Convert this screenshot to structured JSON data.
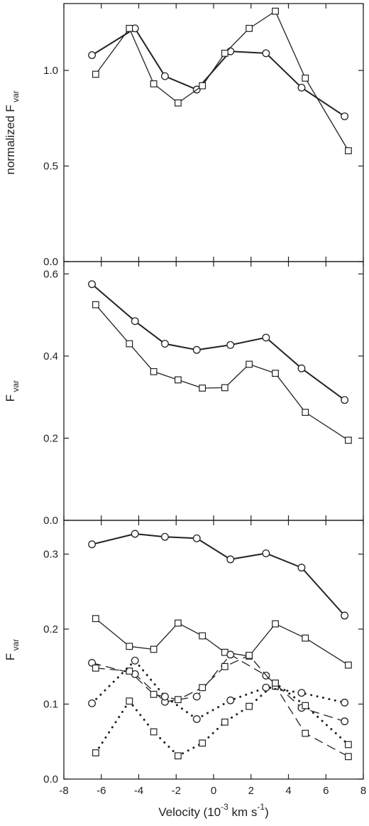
{
  "chart_data": {
    "type": "line",
    "xlabel": {
      "base": "Velocity (10",
      "exp1": "-3",
      "mid": " km s",
      "exp2": "-1",
      "tail": ")"
    },
    "xlim": [
      -8,
      8
    ],
    "xticks": [
      -8,
      -6,
      -4,
      -2,
      0,
      2,
      4,
      6,
      8
    ],
    "panels": [
      {
        "ylabel": {
          "main": "normalized F",
          "sub": "var"
        },
        "ylim": [
          0,
          1.35
        ],
        "yticks": [
          0.0,
          0.5,
          1.0
        ],
        "ytick_labels": [
          "0.0",
          "0.5",
          "1.0"
        ],
        "series": [
          {
            "marker": "circle",
            "style": "solid",
            "heavy": true,
            "x": [
              -6.5,
              -4.2,
              -2.6,
              -0.9,
              0.9,
              2.8,
              4.7,
              7.0
            ],
            "y": [
              1.08,
              1.22,
              0.97,
              0.9,
              1.1,
              1.09,
              0.91,
              0.76
            ]
          },
          {
            "marker": "square",
            "style": "solid",
            "heavy": false,
            "x": [
              -6.3,
              -4.5,
              -3.2,
              -1.9,
              -0.6,
              0.6,
              1.9,
              3.3,
              4.9,
              7.2
            ],
            "y": [
              0.98,
              1.22,
              0.93,
              0.83,
              0.92,
              1.09,
              1.22,
              1.31,
              0.96,
              0.58
            ]
          }
        ]
      },
      {
        "ylabel": {
          "main": "F",
          "sub": "var"
        },
        "ylim": [
          0,
          0.63
        ],
        "yticks": [
          0.0,
          0.2,
          0.4,
          0.6
        ],
        "ytick_labels": [
          "0.0",
          "0.2",
          "0.4",
          "0.6"
        ],
        "series": [
          {
            "marker": "circle",
            "style": "solid",
            "heavy": true,
            "x": [
              -6.5,
              -4.2,
              -2.6,
              -0.9,
              0.9,
              2.8,
              4.7,
              7.0
            ],
            "y": [
              0.575,
              0.485,
              0.43,
              0.415,
              0.427,
              0.445,
              0.37,
              0.293
            ]
          },
          {
            "marker": "square",
            "style": "solid",
            "heavy": false,
            "x": [
              -6.3,
              -4.5,
              -3.2,
              -1.9,
              -0.6,
              0.6,
              1.9,
              3.3,
              4.9,
              7.2
            ],
            "y": [
              0.525,
              0.43,
              0.362,
              0.342,
              0.322,
              0.323,
              0.38,
              0.358,
              0.263,
              0.195
            ]
          }
        ]
      },
      {
        "ylabel": {
          "main": "F",
          "sub": "var"
        },
        "ylim": [
          0,
          0.345
        ],
        "yticks": [
          0.0,
          0.1,
          0.2,
          0.3
        ],
        "ytick_labels": [
          "0.0",
          "0.1",
          "0.2",
          "0.3"
        ],
        "series": [
          {
            "marker": "circle",
            "style": "solid",
            "heavy": true,
            "x": [
              -6.5,
              -4.2,
              -2.6,
              -0.9,
              0.9,
              2.8,
              4.7,
              7.0
            ],
            "y": [
              0.313,
              0.327,
              0.323,
              0.321,
              0.293,
              0.301,
              0.282,
              0.218
            ]
          },
          {
            "marker": "square",
            "style": "solid",
            "heavy": false,
            "x": [
              -6.3,
              -4.5,
              -3.2,
              -1.9,
              -0.6,
              0.6,
              1.9,
              3.3,
              4.9,
              7.2
            ],
            "y": [
              0.214,
              0.177,
              0.173,
              0.208,
              0.191,
              0.169,
              0.164,
              0.207,
              0.188,
              0.152
            ]
          },
          {
            "marker": "circle",
            "style": "dashed",
            "heavy": false,
            "x": [
              -6.5,
              -4.2,
              -2.6,
              -0.9,
              0.9,
              2.8,
              4.7,
              7.0
            ],
            "y": [
              0.155,
              0.14,
              0.103,
              0.11,
              0.166,
              0.138,
              0.095,
              0.077
            ]
          },
          {
            "marker": "square",
            "style": "dashed",
            "heavy": false,
            "x": [
              -6.3,
              -4.5,
              -3.2,
              -1.9,
              -0.6,
              0.6,
              1.9,
              3.3,
              4.9,
              7.2
            ],
            "y": [
              0.148,
              0.144,
              0.113,
              0.106,
              0.122,
              0.15,
              0.165,
              0.124,
              0.061,
              0.03
            ]
          },
          {
            "marker": "circle",
            "style": "dotted",
            "heavy": false,
            "x": [
              -6.5,
              -4.2,
              -2.6,
              -0.9,
              0.9,
              2.8,
              4.7,
              7.0
            ],
            "y": [
              0.101,
              0.158,
              0.11,
              0.08,
              0.105,
              0.122,
              0.115,
              0.102
            ]
          },
          {
            "marker": "square",
            "style": "dotted",
            "heavy": false,
            "x": [
              -6.3,
              -4.5,
              -3.2,
              -1.9,
              -0.6,
              0.6,
              1.9,
              3.3,
              4.9,
              7.2
            ],
            "y": [
              0.035,
              0.104,
              0.063,
              0.031,
              0.048,
              0.076,
              0.097,
              0.128,
              0.098,
              0.046
            ]
          }
        ]
      }
    ]
  }
}
